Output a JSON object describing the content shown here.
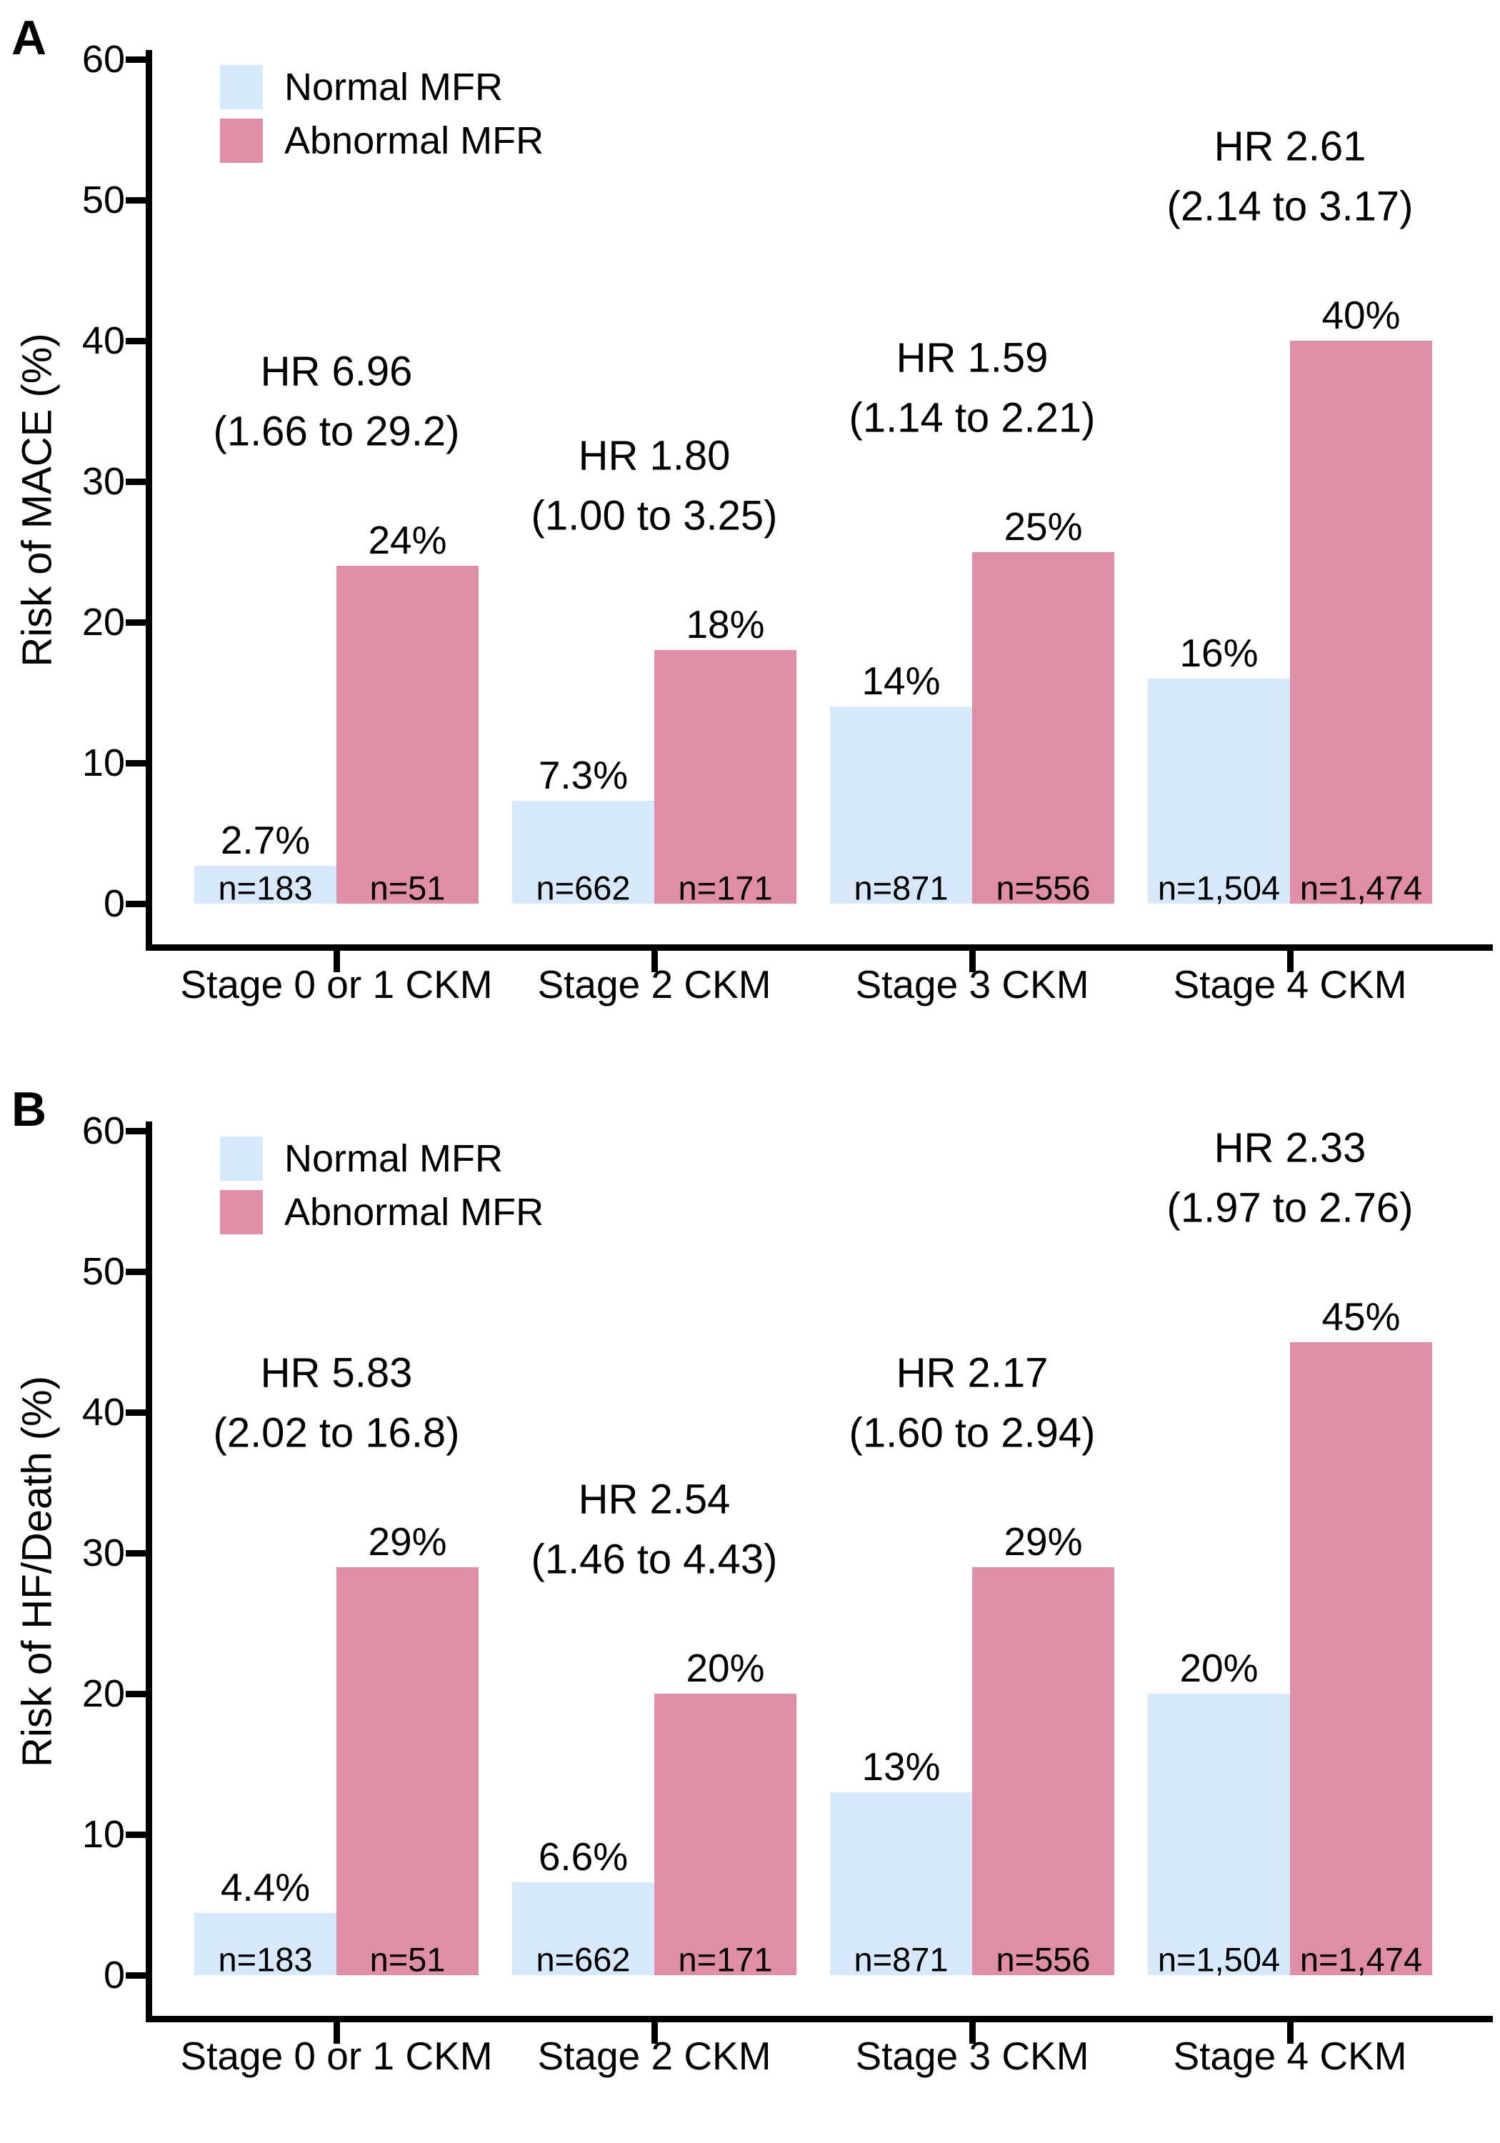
{
  "figure_title": "",
  "colors": {
    "normal_mfr": "#d8e8fb",
    "abnormal_mfr": "#df8ea6",
    "axis": "#000000",
    "text": "#000000",
    "background": "#ffffff"
  },
  "chart_data": [
    {
      "panel": "A",
      "type": "bar",
      "title": "",
      "xlabel": "",
      "ylabel": "Risk of MACE (%)",
      "ylim": [
        0,
        60
      ],
      "yticks": [
        0,
        10,
        20,
        30,
        40,
        50,
        60
      ],
      "grid": "off",
      "legend_position": "top-left-inside",
      "legend": [
        {
          "label": "Normal MFR",
          "color": "#d8e8fb"
        },
        {
          "label": "Abnormal MFR",
          "color": "#df8ea6"
        }
      ],
      "categories": [
        "Stage 0 or 1 CKM",
        "Stage 2 CKM",
        "Stage 3 CKM",
        "Stage 4 CKM"
      ],
      "series": [
        {
          "name": "Normal MFR",
          "values": [
            2.7,
            7.3,
            14,
            16
          ],
          "value_labels": [
            "2.7%",
            "7.3%",
            "14%",
            "16%"
          ],
          "n_labels": [
            "n=183",
            "n=662",
            "n=871",
            "n=1,504"
          ]
        },
        {
          "name": "Abnormal MFR",
          "values": [
            24,
            18,
            25,
            40
          ],
          "value_labels": [
            "24%",
            "18%",
            "25%",
            "40%"
          ],
          "n_labels": [
            "n=51",
            "n=171",
            "n=556",
            "n=1,474"
          ]
        }
      ],
      "annotations": [
        {
          "line1": "HR 6.96",
          "line2": "(1.66 to 29.2)"
        },
        {
          "line1": "HR 1.80",
          "line2": "(1.00 to 3.25)"
        },
        {
          "line1": "HR 1.59",
          "line2": "(1.14 to 2.21)"
        },
        {
          "line1": "HR 2.61",
          "line2": "(2.14 to 3.17)"
        }
      ]
    },
    {
      "panel": "B",
      "type": "bar",
      "title": "",
      "xlabel": "",
      "ylabel": "Risk of HF/Death (%)",
      "ylim": [
        0,
        60
      ],
      "yticks": [
        0,
        10,
        20,
        30,
        40,
        50,
        60
      ],
      "grid": "off",
      "legend_position": "top-left-inside",
      "legend": [
        {
          "label": "Normal MFR",
          "color": "#d8e8fb"
        },
        {
          "label": "Abnormal MFR",
          "color": "#df8ea6"
        }
      ],
      "categories": [
        "Stage 0 or 1 CKM",
        "Stage 2 CKM",
        "Stage 3 CKM",
        "Stage 4 CKM"
      ],
      "series": [
        {
          "name": "Normal MFR",
          "values": [
            4.4,
            6.6,
            13,
            20
          ],
          "value_labels": [
            "4.4%",
            "6.6%",
            "13%",
            "20%"
          ],
          "n_labels": [
            "n=183",
            "n=662",
            "n=871",
            "n=1,504"
          ]
        },
        {
          "name": "Abnormal MFR",
          "values": [
            29,
            20,
            29,
            45
          ],
          "value_labels": [
            "29%",
            "20%",
            "29%",
            "45%"
          ],
          "n_labels": [
            "n=51",
            "n=171",
            "n=556",
            "n=1,474"
          ]
        }
      ],
      "annotations": [
        {
          "line1": "HR 5.83",
          "line2": "(2.02 to 16.8)"
        },
        {
          "line1": "HR 2.54",
          "line2": "(1.46 to 4.43)"
        },
        {
          "line1": "HR 2.17",
          "line2": "(1.60 to 2.94)"
        },
        {
          "line1": "HR 2.33",
          "line2": "(1.97 to 2.76)"
        }
      ]
    }
  ]
}
